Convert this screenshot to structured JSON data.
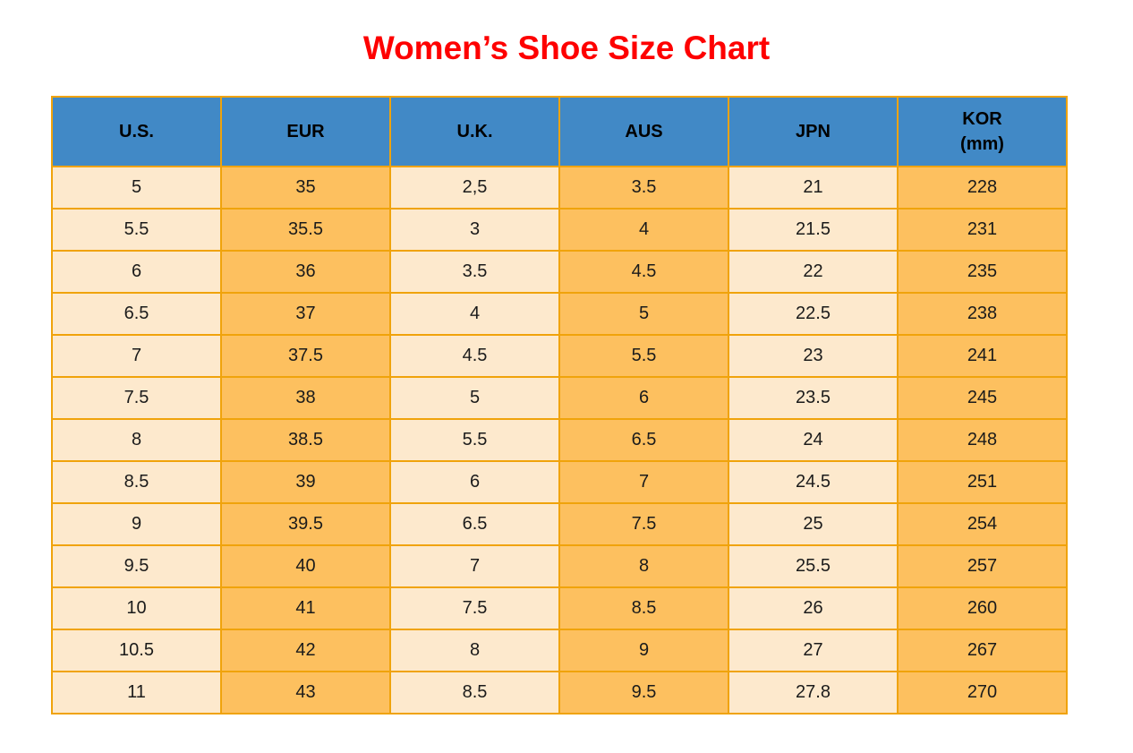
{
  "chart_data": {
    "type": "table",
    "title": "Women’s Shoe Size Chart",
    "columns": [
      {
        "key": "us",
        "label": "U.S."
      },
      {
        "key": "eur",
        "label": "EUR"
      },
      {
        "key": "uk",
        "label": "U.K."
      },
      {
        "key": "aus",
        "label": "AUS"
      },
      {
        "key": "jpn",
        "label": "JPN"
      },
      {
        "key": "kor",
        "label": "KOR\n(mm)"
      }
    ],
    "rows": [
      [
        "5",
        "35",
        "2,5",
        "3.5",
        "21",
        "228"
      ],
      [
        "5.5",
        "35.5",
        "3",
        "4",
        "21.5",
        "231"
      ],
      [
        "6",
        "36",
        "3.5",
        "4.5",
        "22",
        "235"
      ],
      [
        "6.5",
        "37",
        "4",
        "5",
        "22.5",
        "238"
      ],
      [
        "7",
        "37.5",
        "4.5",
        "5.5",
        "23",
        "241"
      ],
      [
        "7.5",
        "38",
        "5",
        "6",
        "23.5",
        "245"
      ],
      [
        "8",
        "38.5",
        "5.5",
        "6.5",
        "24",
        "248"
      ],
      [
        "8.5",
        "39",
        "6",
        "7",
        "24.5",
        "251"
      ],
      [
        "9",
        "39.5",
        "6.5",
        "7.5",
        "25",
        "254"
      ],
      [
        "9.5",
        "40",
        "7",
        "8",
        "25.5",
        "257"
      ],
      [
        "10",
        "41",
        "7.5",
        "8.5",
        "26",
        "260"
      ],
      [
        "10.5",
        "42",
        "8",
        "9",
        "27",
        "267"
      ],
      [
        "11",
        "43",
        "8.5",
        "9.5",
        "27.8",
        "270"
      ]
    ],
    "layout": {
      "header_position": "top",
      "grid": "on",
      "column_fill_pattern": [
        "light",
        "orange",
        "light",
        "orange",
        "light",
        "orange"
      ]
    }
  },
  "colors": {
    "header_bg": "#4189C6",
    "cell_light": "#FDE9CD",
    "cell_orange": "#FDC05F",
    "grid": "#F0A30B",
    "title_red": "#FE0000",
    "ink": "#1b1b1b"
  }
}
